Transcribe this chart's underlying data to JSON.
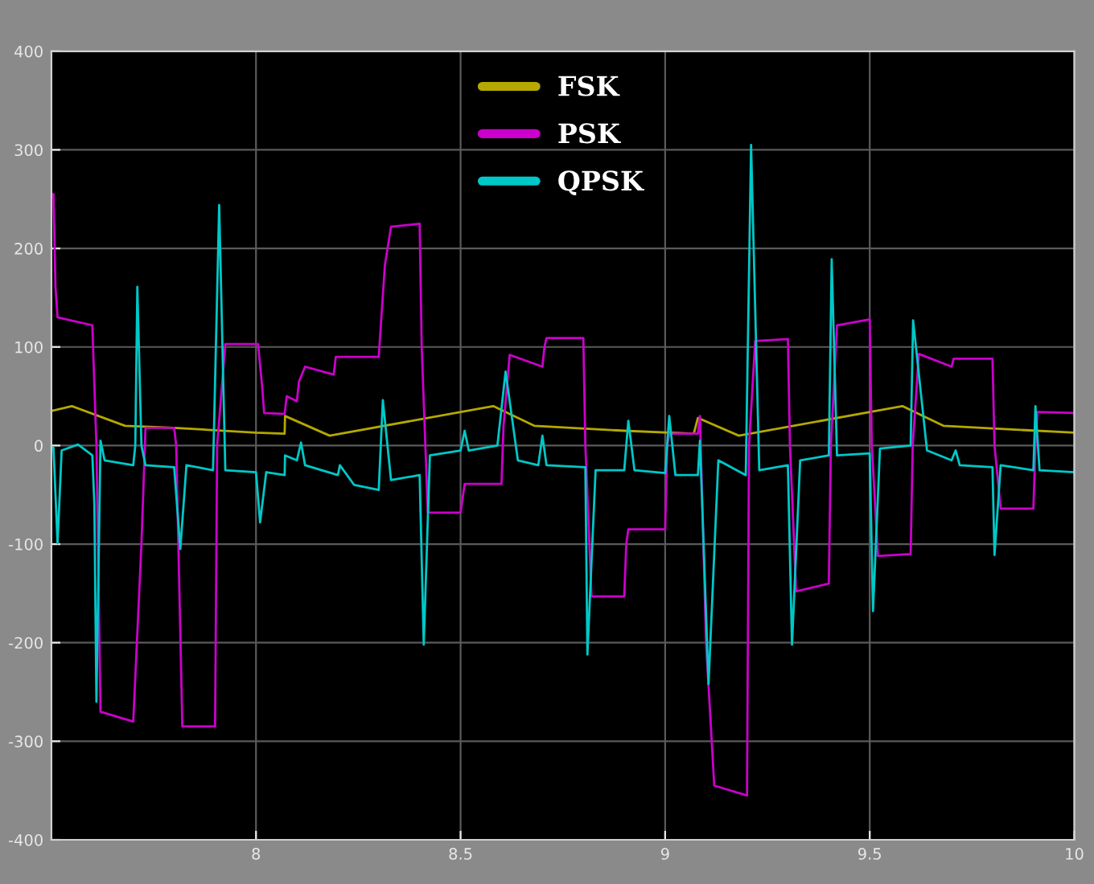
{
  "chart_data": {
    "type": "line",
    "xlim": [
      7.5,
      10
    ],
    "xticks": [
      8,
      8.5,
      9,
      9.5,
      10
    ],
    "ylim": [
      -400,
      400
    ],
    "yticks": [
      -400,
      -300,
      -200,
      -100,
      0,
      100,
      200,
      300,
      400
    ],
    "grid": true,
    "legend": "top",
    "marker": "none",
    "line_style": "solid",
    "series": [
      {
        "name": "FSK",
        "color": "#b5a800",
        "x": [
          7.5,
          7.55,
          7.68,
          7.8,
          8.0,
          8.07,
          8.071,
          8.18,
          8.58,
          8.68,
          8.9,
          9.07,
          9.08,
          9.18,
          9.58,
          9.68,
          10
        ],
        "values": [
          35,
          40,
          20,
          18,
          13,
          12,
          30,
          10,
          40,
          20,
          15,
          12,
          28,
          10,
          40,
          20,
          13
        ]
      },
      {
        "name": "PSK",
        "color": "#cc00cc",
        "x": [
          7.5,
          7.505,
          7.51,
          7.515,
          7.6,
          7.61,
          7.62,
          7.7,
          7.72,
          7.73,
          7.8,
          7.805,
          7.82,
          7.9,
          7.905,
          7.925,
          8.005,
          8.015,
          8.02,
          8.07,
          8.075,
          8.1,
          8.105,
          8.12,
          8.19,
          8.195,
          8.3,
          8.315,
          8.33,
          8.4,
          8.405,
          8.42,
          8.5,
          8.51,
          8.6,
          8.605,
          8.62,
          8.7,
          8.705,
          8.71,
          8.8,
          8.805,
          8.82,
          8.9,
          8.905,
          8.91,
          9.0,
          9.005,
          9.01,
          9.08,
          9.085,
          9.1,
          9.12,
          9.2,
          9.205,
          9.22,
          9.3,
          9.305,
          9.32,
          9.4,
          9.405,
          9.42,
          9.5,
          9.505,
          9.52,
          9.6,
          9.605,
          9.62,
          9.7,
          9.705,
          9.8,
          9.805,
          9.82,
          9.9,
          9.905,
          9.91,
          10
        ],
        "values": [
          255,
          255,
          160,
          130,
          122,
          0,
          -270,
          -280,
          -100,
          18,
          18,
          0,
          -285,
          -285,
          0,
          103,
          103,
          60,
          33,
          32,
          50,
          45,
          65,
          80,
          72,
          90,
          90,
          183,
          222,
          225,
          100,
          -68,
          -68,
          -39,
          -39,
          20,
          92,
          80,
          100,
          109,
          109,
          0,
          -153,
          -153,
          -100,
          -85,
          -85,
          0,
          12,
          12,
          30,
          -200,
          -345,
          -355,
          0,
          106,
          108,
          0,
          -148,
          -140,
          0,
          122,
          128,
          0,
          -112,
          -110,
          0,
          93,
          80,
          88,
          88,
          0,
          -64,
          -64,
          0,
          34,
          33
        ]
      },
      {
        "name": "QPSK",
        "color": "#00c8c8",
        "x": [
          7.5,
          7.505,
          7.515,
          7.525,
          7.565,
          7.6,
          7.605,
          7.61,
          7.62,
          7.63,
          7.7,
          7.705,
          7.71,
          7.72,
          7.73,
          7.8,
          7.815,
          7.83,
          7.895,
          7.91,
          7.925,
          8.0,
          8.01,
          8.025,
          8.07,
          8.071,
          8.1,
          8.11,
          8.12,
          8.2,
          8.205,
          8.24,
          8.3,
          8.31,
          8.33,
          8.4,
          8.41,
          8.425,
          8.5,
          8.51,
          8.52,
          8.59,
          8.61,
          8.64,
          8.69,
          8.7,
          8.71,
          8.805,
          8.81,
          8.83,
          8.9,
          8.91,
          8.925,
          9.0,
          9.01,
          9.025,
          9.08,
          9.085,
          9.106,
          9.13,
          9.197,
          9.21,
          9.23,
          9.3,
          9.31,
          9.33,
          9.4,
          9.407,
          9.42,
          9.5,
          9.508,
          9.525,
          9.6,
          9.606,
          9.64,
          9.7,
          9.71,
          9.72,
          9.8,
          9.805,
          9.82,
          9.9,
          9.905,
          9.915,
          10
        ],
        "values": [
          -2,
          -2,
          -99,
          -5,
          1,
          -10,
          -60,
          -260,
          5,
          -15,
          -20,
          0,
          161,
          0,
          -20,
          -22,
          -105,
          -20,
          -25,
          244,
          -25,
          -27,
          -78,
          -27,
          -30,
          -10,
          -15,
          3,
          -20,
          -30,
          -20,
          -40,
          -45,
          46,
          -35,
          -30,
          -202,
          -10,
          -5,
          15,
          -5,
          0,
          75,
          -15,
          -20,
          10,
          -20,
          -22,
          -212,
          -25,
          -25,
          25,
          -25,
          -28,
          30,
          -30,
          -30,
          5,
          -242,
          -15,
          -30,
          305,
          -25,
          -20,
          -202,
          -15,
          -10,
          189,
          -10,
          -8,
          -168,
          -3,
          0,
          127,
          -5,
          -15,
          -5,
          -20,
          -22,
          -111,
          -20,
          -25,
          40,
          -25,
          -27
        ]
      }
    ]
  }
}
